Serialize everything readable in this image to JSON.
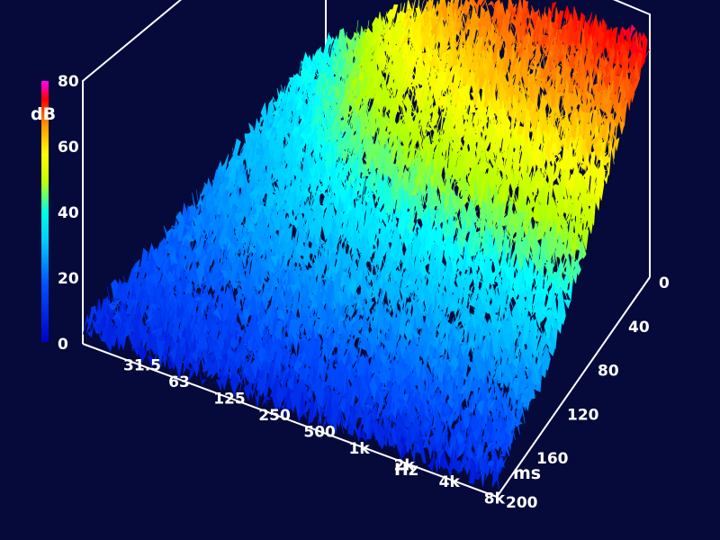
{
  "chart_data": {
    "type": "surface3d",
    "title": "",
    "z_axis": {
      "unit": "dB",
      "range": [
        0,
        80
      ],
      "ticks": [
        "0",
        "20",
        "40",
        "60",
        "80"
      ]
    },
    "freq_axis": {
      "unit": "Hz",
      "scale": "log",
      "ticks": [
        "31.5",
        "63",
        "125",
        "250",
        "500",
        "1k",
        "2k",
        "4k",
        "8k"
      ]
    },
    "time_axis": {
      "unit": "ms",
      "range": [
        0,
        200
      ],
      "ticks": [
        "0",
        "40",
        "80",
        "120",
        "160",
        "200"
      ]
    },
    "colormap": [
      "#0000c8",
      "#0050ff",
      "#00b4ff",
      "#00ffff",
      "#b4ff00",
      "#ffff00",
      "#ff8c00",
      "#ff0000",
      "#ff00ff"
    ],
    "approx_level_db": {
      "freq_hz": [
        31.5,
        63,
        125,
        250,
        500,
        1000,
        2000,
        4000,
        8000
      ],
      "time_ms": [
        0,
        40,
        80,
        120,
        160,
        200
      ],
      "values": [
        [
          30,
          24,
          18,
          12,
          8,
          5
        ],
        [
          38,
          30,
          22,
          15,
          9,
          5
        ],
        [
          50,
          40,
          28,
          18,
          10,
          5
        ],
        [
          58,
          46,
          33,
          20,
          11,
          5
        ],
        [
          62,
          50,
          36,
          22,
          12,
          5
        ],
        [
          66,
          53,
          38,
          23,
          12,
          5
        ],
        [
          68,
          55,
          39,
          24,
          12,
          5
        ],
        [
          70,
          56,
          40,
          24,
          12,
          5
        ],
        [
          72,
          57,
          41,
          25,
          13,
          5
        ]
      ]
    }
  }
}
